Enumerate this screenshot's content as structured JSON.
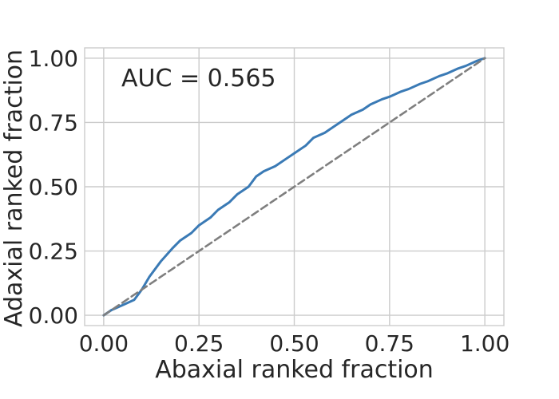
{
  "chart_data": {
    "type": "line",
    "title": "",
    "xlabel": "Abaxial ranked fraction",
    "ylabel": "Adaxial ranked fraction",
    "xlim": [
      -0.05,
      1.05
    ],
    "ylim": [
      -0.04,
      1.04
    ],
    "x_ticks": [
      0.0,
      0.25,
      0.5,
      0.75,
      1.0
    ],
    "y_ticks": [
      0.0,
      0.25,
      0.5,
      0.75,
      1.0
    ],
    "x_tick_labels": [
      "0.00",
      "0.25",
      "0.50",
      "0.75",
      "1.00"
    ],
    "y_tick_labels": [
      "0.00",
      "0.25",
      "0.50",
      "0.75",
      "1.00"
    ],
    "grid": true,
    "annotation": "AUC = 0.565",
    "series": [
      {
        "style": "solid",
        "color": "#3a7ab5",
        "x": [
          0.0,
          0.02,
          0.05,
          0.08,
          0.1,
          0.12,
          0.15,
          0.18,
          0.2,
          0.23,
          0.25,
          0.28,
          0.3,
          0.33,
          0.35,
          0.38,
          0.4,
          0.42,
          0.45,
          0.48,
          0.5,
          0.53,
          0.55,
          0.58,
          0.6,
          0.63,
          0.65,
          0.68,
          0.7,
          0.73,
          0.75,
          0.78,
          0.8,
          0.83,
          0.85,
          0.88,
          0.9,
          0.93,
          0.95,
          0.98,
          1.0
        ],
        "y": [
          0.0,
          0.02,
          0.04,
          0.06,
          0.1,
          0.15,
          0.21,
          0.26,
          0.29,
          0.32,
          0.35,
          0.38,
          0.41,
          0.44,
          0.47,
          0.5,
          0.54,
          0.56,
          0.58,
          0.61,
          0.63,
          0.66,
          0.69,
          0.71,
          0.73,
          0.76,
          0.78,
          0.8,
          0.82,
          0.84,
          0.85,
          0.87,
          0.88,
          0.9,
          0.91,
          0.93,
          0.94,
          0.96,
          0.97,
          0.99,
          1.0
        ]
      },
      {
        "style": "dashed",
        "color": "#7f7f7f",
        "x": [
          0.0,
          1.0
        ],
        "y": [
          0.0,
          1.0
        ]
      }
    ]
  }
}
